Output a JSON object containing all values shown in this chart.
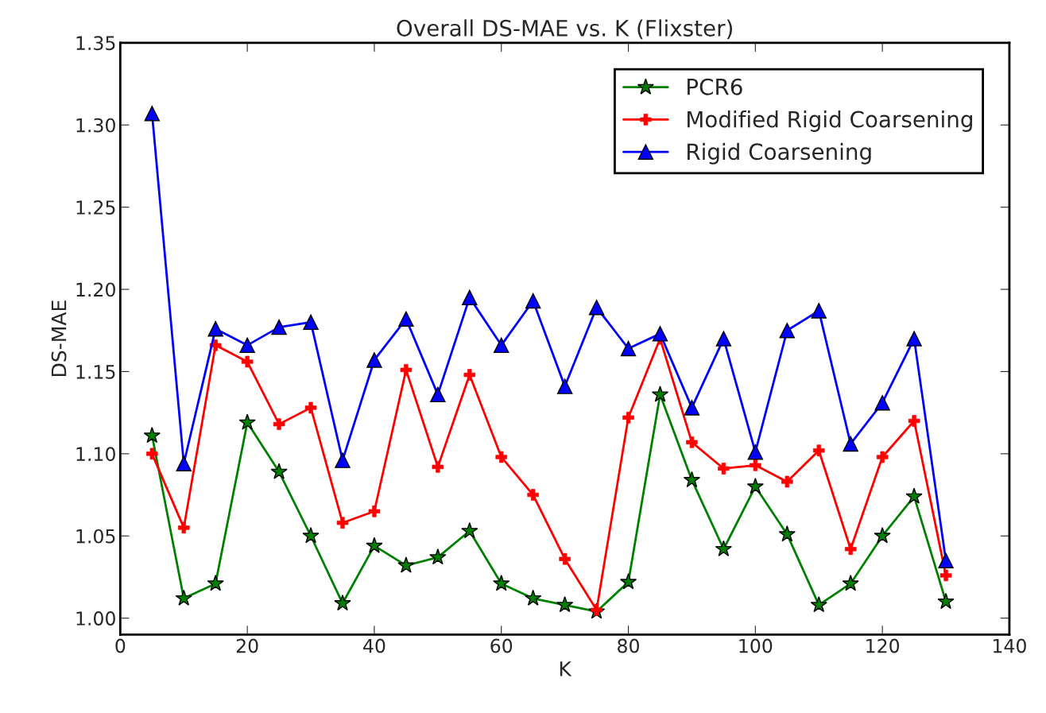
{
  "chart_data": {
    "type": "line",
    "title": "Overall DS-MAE vs. K (Flixster)",
    "xlabel": "K",
    "ylabel": "DS-MAE",
    "x": [
      5,
      10,
      15,
      20,
      25,
      30,
      35,
      40,
      45,
      50,
      55,
      60,
      65,
      70,
      75,
      80,
      85,
      90,
      95,
      100,
      105,
      110,
      115,
      120,
      125,
      130
    ],
    "series": [
      {
        "name": "PCR6",
        "color": "#008000",
        "marker": "star",
        "values": [
          1.111,
          1.012,
          1.021,
          1.119,
          1.089,
          1.05,
          1.009,
          1.044,
          1.032,
          1.037,
          1.053,
          1.021,
          1.012,
          1.008,
          1.004,
          1.022,
          1.136,
          1.084,
          1.042,
          1.08,
          1.051,
          1.008,
          1.021,
          1.05,
          1.074,
          1.01
        ]
      },
      {
        "name": "Modified Rigid Coarsening",
        "color": "#ff0000",
        "marker": "cross",
        "values": [
          1.1,
          1.055,
          1.166,
          1.156,
          1.118,
          1.128,
          1.058,
          1.065,
          1.151,
          1.092,
          1.148,
          1.098,
          1.075,
          1.036,
          1.005,
          1.122,
          1.17,
          1.107,
          1.091,
          1.093,
          1.083,
          1.102,
          1.042,
          1.098,
          1.12,
          1.026
        ]
      },
      {
        "name": "Rigid Coarsening",
        "color": "#0000ff",
        "marker": "triangle",
        "values": [
          1.307,
          1.094,
          1.176,
          1.166,
          1.177,
          1.18,
          1.096,
          1.157,
          1.182,
          1.136,
          1.195,
          1.166,
          1.193,
          1.141,
          1.189,
          1.164,
          1.173,
          1.128,
          1.17,
          1.101,
          1.175,
          1.187,
          1.106,
          1.131,
          1.17,
          1.035
        ]
      }
    ],
    "xlim": [
      0,
      140
    ],
    "xticks": [
      0,
      20,
      40,
      60,
      80,
      100,
      120,
      140
    ],
    "ylim": [
      0.99,
      1.35
    ],
    "yticks": [
      {
        "value": 1.0,
        "label": "1.00"
      },
      {
        "value": 1.05,
        "label": "1.05"
      },
      {
        "value": 1.1,
        "label": "1.10"
      },
      {
        "value": 1.15,
        "label": "1.15"
      },
      {
        "value": 1.2,
        "label": "1.20"
      },
      {
        "value": 1.25,
        "label": "1.25"
      },
      {
        "value": 1.3,
        "label": "1.30"
      },
      {
        "value": 1.35,
        "label": "1.35"
      }
    ],
    "legend": "top right",
    "grid": false
  }
}
